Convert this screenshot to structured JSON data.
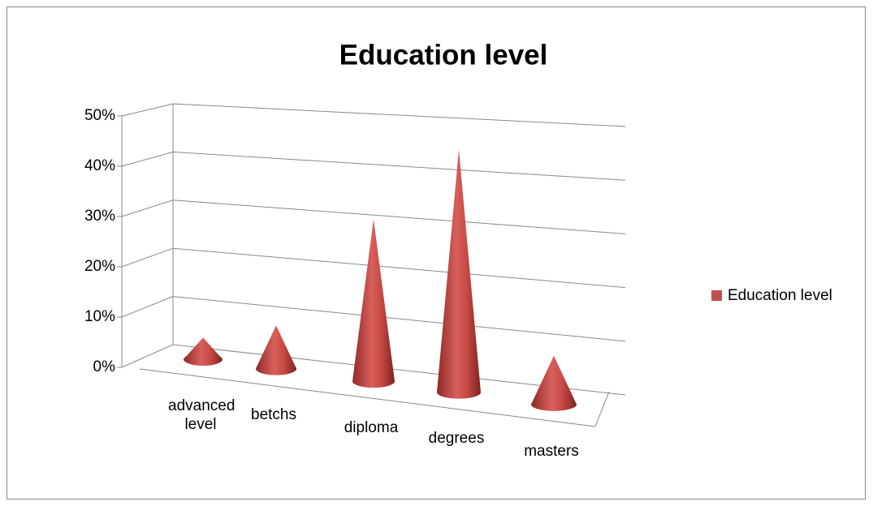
{
  "chart_data": {
    "type": "cone3d",
    "title": "Education level",
    "categories": [
      "advanced level",
      "betchs",
      "diploma",
      "degrees",
      "masters"
    ],
    "series": [
      {
        "name": "Education level",
        "color": "#c0504d",
        "values": [
          4,
          8,
          30,
          45,
          9
        ]
      }
    ],
    "ylim": [
      0,
      50
    ],
    "yticks": [
      {
        "value": 0,
        "label": "0%"
      },
      {
        "value": 10,
        "label": "10%"
      },
      {
        "value": 20,
        "label": "20%"
      },
      {
        "value": 30,
        "label": "30%"
      },
      {
        "value": 40,
        "label": "40%"
      },
      {
        "value": 50,
        "label": "50%"
      }
    ],
    "grid": true,
    "legend": "right"
  }
}
